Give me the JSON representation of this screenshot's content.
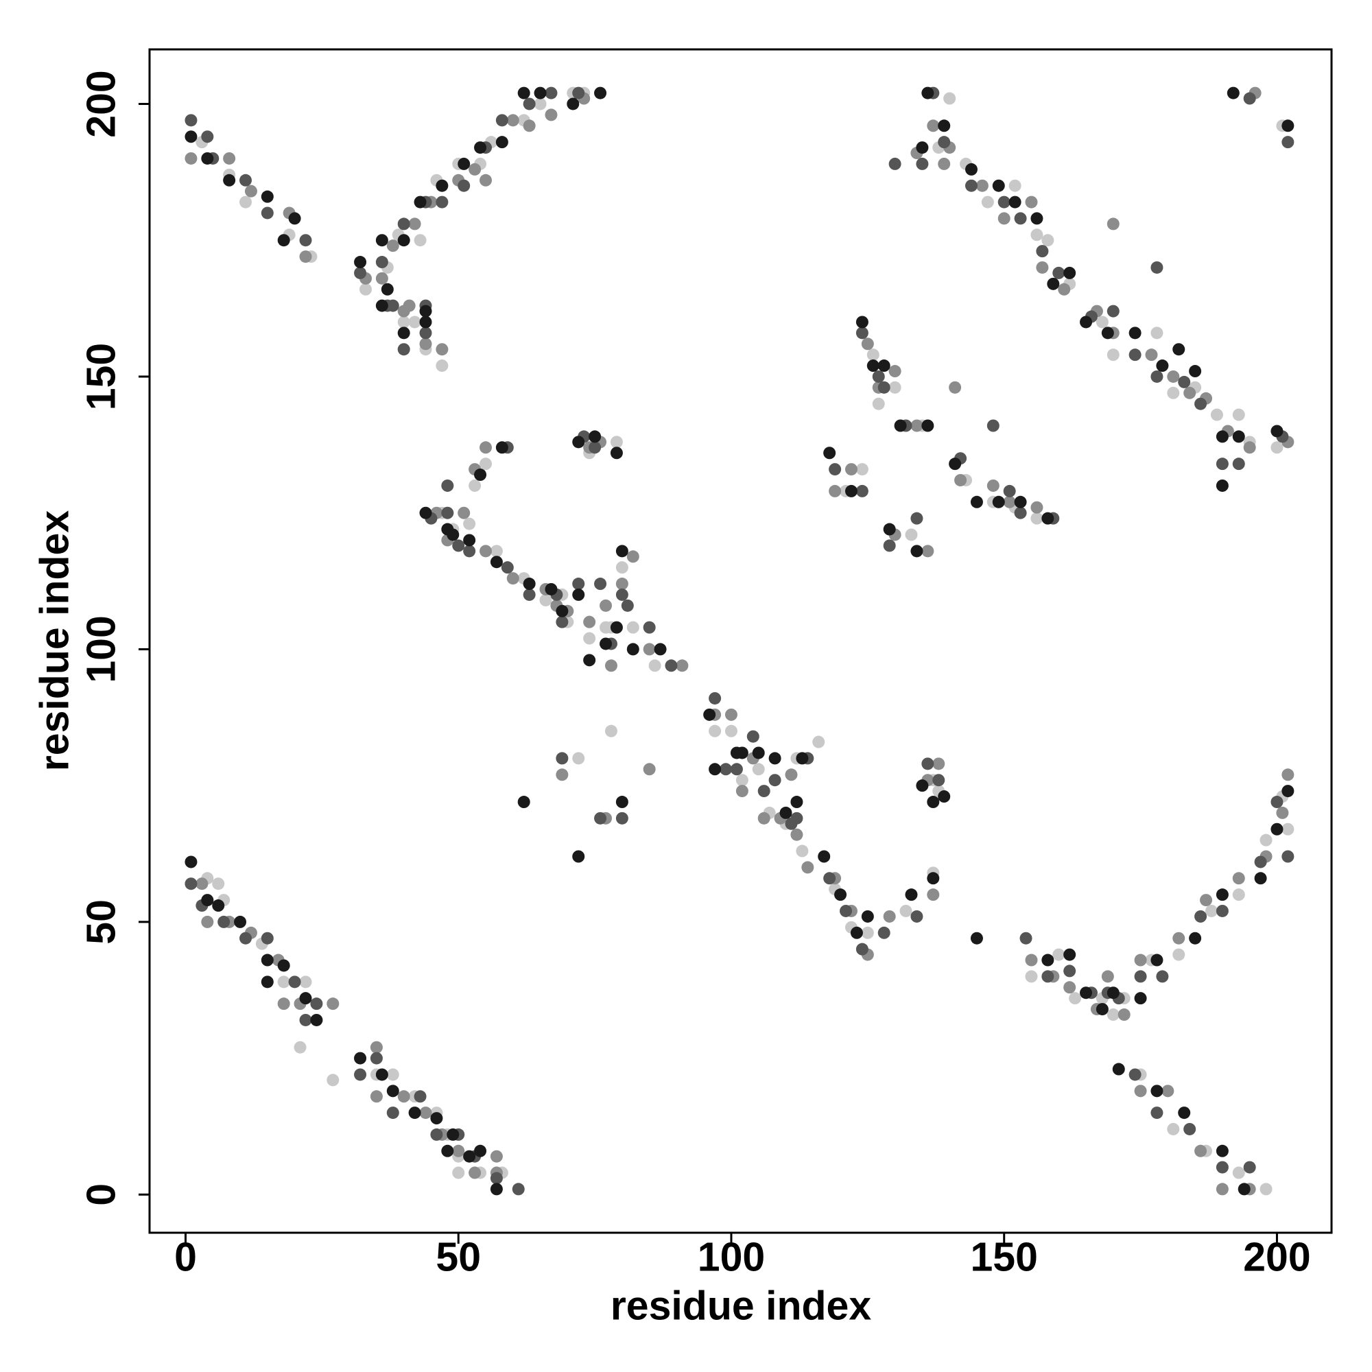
{
  "chart_data": {
    "type": "scatter",
    "xlabel": "residue index",
    "ylabel": "residue index",
    "xlim": [
      -6.6,
      210
    ],
    "ylim": [
      -7,
      210
    ],
    "xticks": [
      0,
      50,
      100,
      150,
      200
    ],
    "yticks": [
      0,
      50,
      100,
      150,
      200
    ],
    "grid": false,
    "series": [
      {
        "color": "#1a1a1a",
        "x": [
          1,
          4,
          8,
          15,
          20,
          18,
          1,
          4,
          6,
          10,
          15,
          18,
          22,
          24,
          15,
          32,
          36,
          38,
          42,
          46,
          49,
          52,
          54,
          57,
          48,
          32,
          36,
          37,
          40,
          43,
          47,
          51,
          54,
          58,
          62,
          65,
          71,
          76,
          36,
          40,
          44,
          44,
          44,
          48,
          49,
          52,
          54,
          58,
          57,
          63,
          67,
          69,
          72,
          74,
          77,
          79,
          80,
          82,
          87,
          72,
          75,
          79,
          62,
          72,
          80,
          96,
          97,
          101,
          102,
          105,
          108,
          110,
          112,
          113,
          117,
          120,
          123,
          125,
          133,
          137,
          135,
          137,
          139,
          124,
          126,
          128,
          131,
          136,
          118,
          122,
          129,
          134,
          141,
          145,
          149,
          153,
          158,
          136,
          139,
          135,
          144,
          149,
          152,
          156,
          159,
          162,
          165,
          169,
          174,
          179,
          182,
          185,
          190,
          193,
          200,
          190,
          192,
          202,
          145,
          158,
          162,
          165,
          168,
          170,
          175,
          178,
          185,
          190,
          197,
          200,
          202,
          171,
          178,
          183,
          190,
          194
        ],
        "values": [
          194,
          190,
          186,
          183,
          179,
          175,
          61,
          54,
          53,
          50,
          43,
          42,
          36,
          32,
          39,
          25,
          22,
          19,
          15,
          14,
          11,
          7,
          8,
          1,
          8,
          171,
          175,
          166,
          175,
          182,
          185,
          189,
          192,
          193,
          202,
          202,
          200,
          202,
          163,
          158,
          160,
          162,
          125,
          122,
          121,
          120,
          132,
          137,
          116,
          112,
          111,
          107,
          110,
          98,
          101,
          104,
          118,
          100,
          100,
          138,
          139,
          136,
          72,
          62,
          72,
          88,
          78,
          81,
          81,
          81,
          80,
          70,
          72,
          80,
          62,
          55,
          48,
          51,
          55,
          58,
          75,
          72,
          73,
          160,
          152,
          152,
          141,
          141,
          136,
          129,
          122,
          118,
          134,
          127,
          127,
          127,
          124,
          202,
          196,
          192,
          188,
          185,
          182,
          179,
          167,
          169,
          160,
          158,
          158,
          152,
          155,
          151,
          139,
          139,
          140,
          130,
          202,
          196,
          47,
          43,
          44,
          37,
          34,
          37,
          36,
          43,
          47,
          55,
          58,
          67,
          74,
          23,
          19,
          15,
          8,
          1
        ]
      },
      {
        "color": "#555555",
        "x": [
          1,
          5,
          11,
          15,
          22,
          4,
          1,
          3,
          7,
          11,
          15,
          20,
          22,
          24,
          32,
          35,
          38,
          43,
          46,
          50,
          53,
          57,
          61,
          32,
          36,
          37,
          40,
          44,
          47,
          51,
          55,
          58,
          63,
          67,
          72,
          38,
          40,
          44,
          44,
          45,
          48,
          50,
          52,
          48,
          59,
          59,
          63,
          68,
          69,
          72,
          76,
          78,
          80,
          81,
          85,
          89,
          73,
          75,
          69,
          76,
          80,
          97,
          99,
          101,
          104,
          106,
          108,
          111,
          112,
          114,
          118,
          121,
          124,
          128,
          134,
          136,
          138,
          124,
          127,
          128,
          132,
          119,
          124,
          129,
          134,
          142,
          148,
          151,
          153,
          159,
          137,
          139,
          135,
          144,
          150,
          153,
          157,
          160,
          130,
          166,
          170,
          174,
          178,
          183,
          186,
          190,
          193,
          201,
          178,
          195,
          202,
          154,
          158,
          162,
          166,
          169,
          171,
          175,
          179,
          186,
          190,
          197,
          200,
          202,
          174,
          178,
          184,
          190,
          195
        ],
        "values": [
          197,
          190,
          186,
          180,
          175,
          194,
          57,
          53,
          50,
          47,
          47,
          39,
          32,
          35,
          22,
          25,
          15,
          18,
          11,
          11,
          7,
          3,
          1,
          169,
          171,
          163,
          178,
          182,
          182,
          185,
          192,
          197,
          200,
          202,
          202,
          163,
          155,
          158,
          163,
          124,
          125,
          119,
          118,
          130,
          137,
          115,
          110,
          110,
          105,
          112,
          112,
          101,
          110,
          108,
          104,
          97,
          139,
          137,
          80,
          69,
          69,
          91,
          78,
          78,
          84,
          74,
          76,
          68,
          69,
          80,
          58,
          52,
          45,
          48,
          51,
          79,
          76,
          158,
          150,
          148,
          141,
          133,
          129,
          119,
          124,
          135,
          141,
          129,
          125,
          124,
          202,
          193,
          189,
          185,
          182,
          179,
          173,
          169,
          189,
          161,
          162,
          154,
          150,
          149,
          145,
          134,
          134,
          139,
          170,
          201,
          193,
          47,
          40,
          41,
          37,
          37,
          36,
          40,
          40,
          51,
          52,
          61,
          72,
          62,
          22,
          15,
          12,
          5,
          5
        ]
      },
      {
        "color": "#8c8c8c",
        "x": [
          1,
          8,
          12,
          19,
          22,
          3,
          4,
          8,
          12,
          17,
          21,
          18,
          27,
          35,
          35,
          40,
          44,
          47,
          50,
          53,
          57,
          57,
          33,
          36,
          38,
          42,
          45,
          50,
          53,
          55,
          60,
          63,
          67,
          73,
          40,
          41,
          44,
          47,
          46,
          48,
          51,
          53,
          55,
          55,
          60,
          66,
          68,
          70,
          74,
          77,
          78,
          80,
          82,
          85,
          91,
          74,
          76,
          69,
          77,
          85,
          97,
          100,
          102,
          104,
          106,
          109,
          111,
          112,
          114,
          119,
          122,
          125,
          129,
          137,
          136,
          138,
          125,
          127,
          130,
          134,
          119,
          122,
          130,
          136,
          142,
          148,
          151,
          156,
          141,
          137,
          140,
          139,
          146,
          150,
          155,
          157,
          161,
          134,
          167,
          170,
          177,
          181,
          184,
          187,
          191,
          195,
          202,
          170,
          196,
          155,
          159,
          162,
          167,
          169,
          172,
          175,
          182,
          187,
          193,
          198,
          201,
          202,
          175,
          180,
          186,
          190,
          195
        ],
        "values": [
          190,
          190,
          184,
          180,
          172,
          57,
          50,
          50,
          48,
          43,
          35,
          35,
          35,
          27,
          18,
          18,
          15,
          11,
          8,
          4,
          4,
          7,
          168,
          168,
          174,
          178,
          182,
          186,
          188,
          186,
          197,
          196,
          198,
          201,
          162,
          163,
          156,
          155,
          125,
          120,
          125,
          133,
          137,
          118,
          113,
          111,
          108,
          107,
          105,
          108,
          97,
          112,
          117,
          100,
          97,
          137,
          138,
          77,
          69,
          78,
          88,
          88,
          74,
          80,
          69,
          69,
          77,
          66,
          60,
          58,
          52,
          44,
          51,
          55,
          76,
          79,
          156,
          148,
          151,
          141,
          129,
          133,
          121,
          118,
          131,
          130,
          127,
          126,
          148,
          196,
          192,
          189,
          185,
          179,
          182,
          170,
          166,
          191,
          162,
          158,
          154,
          150,
          147,
          146,
          140,
          137,
          138,
          178,
          202,
          43,
          40,
          38,
          34,
          40,
          33,
          43,
          47,
          54,
          58,
          62,
          70,
          77,
          19,
          19,
          8,
          1,
          1
        ]
      },
      {
        "color": "#c8c8c8",
        "x": [
          3,
          8,
          11,
          19,
          23,
          4,
          6,
          7,
          14,
          18,
          22,
          21,
          27,
          35,
          38,
          42,
          46,
          48,
          50,
          54,
          58,
          50,
          33,
          37,
          39,
          43,
          46,
          50,
          54,
          56,
          62,
          65,
          71,
          73,
          40,
          42,
          44,
          47,
          47,
          49,
          52,
          53,
          55,
          57,
          62,
          66,
          69,
          70,
          74,
          77,
          78,
          80,
          82,
          86,
          74,
          79,
          72,
          78,
          97,
          100,
          102,
          105,
          107,
          110,
          112,
          113,
          116,
          119,
          122,
          125,
          132,
          137,
          137,
          138,
          126,
          127,
          130,
          135,
          121,
          124,
          133,
          143,
          148,
          152,
          156,
          138,
          140,
          143,
          147,
          152,
          156,
          158,
          162,
          168,
          170,
          178,
          181,
          185,
          189,
          193,
          195,
          200,
          201,
          155,
          160,
          163,
          168,
          170,
          172,
          177,
          182,
          188,
          193,
          198,
          202,
          201,
          175,
          181,
          187,
          193,
          198
        ],
        "values": [
          193,
          187,
          182,
          176,
          172,
          58,
          57,
          54,
          46,
          39,
          39,
          27,
          21,
          22,
          22,
          18,
          15,
          11,
          7,
          4,
          4,
          4,
          166,
          170,
          176,
          175,
          186,
          189,
          189,
          193,
          197,
          200,
          202,
          202,
          160,
          160,
          155,
          152,
          125,
          122,
          123,
          130,
          134,
          118,
          113,
          109,
          110,
          105,
          102,
          104,
          104,
          115,
          104,
          97,
          136,
          138,
          80,
          85,
          85,
          85,
          76,
          78,
          70,
          68,
          80,
          63,
          83,
          56,
          49,
          48,
          52,
          59,
          76,
          74,
          154,
          145,
          148,
          141,
          129,
          133,
          121,
          131,
          127,
          126,
          124,
          192,
          201,
          189,
          182,
          185,
          176,
          175,
          167,
          160,
          154,
          158,
          147,
          148,
          143,
          143,
          138,
          137,
          196,
          40,
          44,
          36,
          36,
          33,
          36,
          43,
          44,
          52,
          55,
          65,
          67,
          73,
          22,
          12,
          8,
          4,
          1
        ]
      }
    ]
  }
}
